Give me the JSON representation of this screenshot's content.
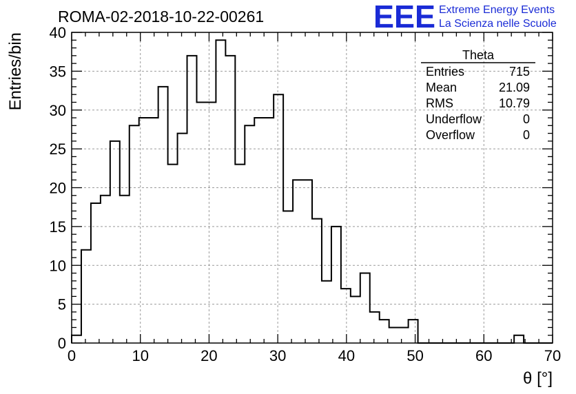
{
  "chart_data": {
    "type": "bar",
    "title": "ROMA-02-2018-10-22-00261",
    "xlabel": "θ [°]",
    "ylabel": "Entries/bin",
    "xlim": [
      0,
      70
    ],
    "ylim": [
      0,
      40
    ],
    "x_ticks": [
      0,
      10,
      20,
      30,
      40,
      50,
      60,
      70
    ],
    "y_ticks": [
      0,
      5,
      10,
      15,
      20,
      25,
      30,
      35,
      40
    ],
    "grid": true,
    "histogram": {
      "bin_edges_start": 0,
      "bin_width": 1.4,
      "values": [
        1,
        12,
        18,
        19,
        26,
        19,
        28,
        29,
        29,
        33,
        23,
        27,
        37,
        31,
        31,
        39,
        37,
        23,
        28,
        29,
        29,
        32,
        17,
        21,
        21,
        16,
        8,
        15,
        7,
        6,
        9,
        4,
        3,
        2,
        2,
        3,
        0,
        0,
        0,
        0,
        0,
        0,
        0,
        0,
        0,
        0,
        1,
        0,
        0,
        0
      ]
    },
    "stats_box": {
      "title": "Theta",
      "rows": [
        {
          "label": "Entries",
          "value": "715"
        },
        {
          "label": "Mean",
          "value": "21.09"
        },
        {
          "label": "RMS",
          "value": "10.79"
        },
        {
          "label": "Underflow",
          "value": "0"
        },
        {
          "label": "Overflow",
          "value": "0"
        }
      ]
    },
    "legend_placement": "top-right"
  },
  "logo": {
    "mark": "EEE",
    "line1": "Extreme Energy Events",
    "line2": "La Scienza nelle Scuole",
    "color": "#1a2bd6"
  }
}
